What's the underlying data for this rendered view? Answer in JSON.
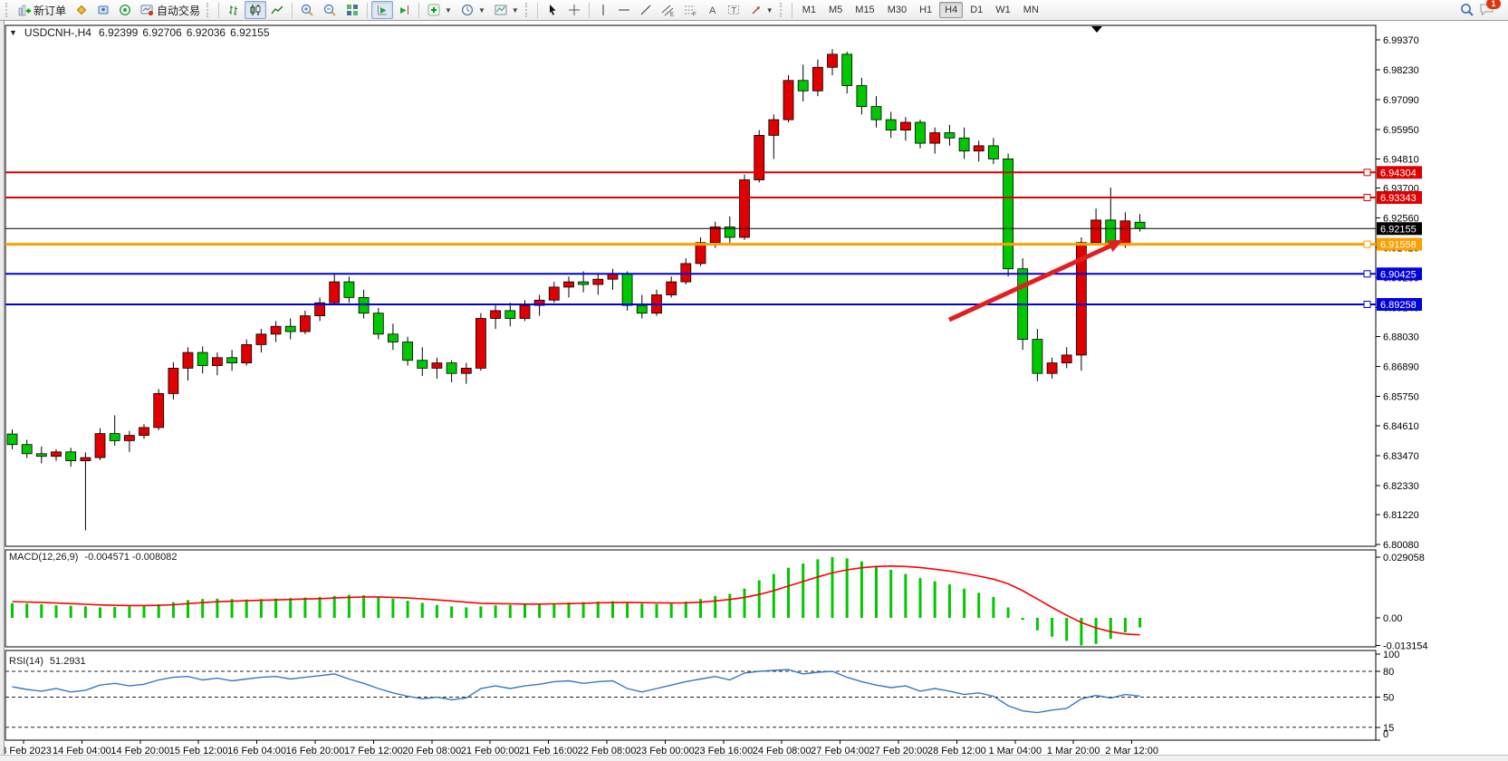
{
  "toolbar": {
    "new_order": "新订单",
    "autotrading": "自动交易",
    "timeframes": [
      "M1",
      "M5",
      "M15",
      "M30",
      "H1",
      "H4",
      "D1",
      "W1",
      "MN"
    ],
    "active_timeframe": "H4",
    "notification_count": "1"
  },
  "chart": {
    "title": "USDCNH-,H4",
    "open": "6.92399",
    "high": "6.92706",
    "low": "6.92036",
    "close": "6.92155"
  },
  "macd": {
    "label": "MACD(12,26,9)",
    "value_main": "-0.004571",
    "value_signal": "-0.008082",
    "axis": [
      "0.029058",
      "0.00",
      "-0.013154"
    ]
  },
  "rsi": {
    "label": "RSI(14)",
    "value": "51.2931",
    "axis": [
      "100",
      "80",
      "50",
      "15",
      "0"
    ],
    "levels": [
      80,
      50,
      15
    ]
  },
  "colors": {
    "bull": "#e00000",
    "bear": "#00c800",
    "wick": "#000000",
    "line_red": "#e00000",
    "line_blue": "#0000e0",
    "line_orange": "#ffa000",
    "line_black": "#000000",
    "macd_hist": "#00c800",
    "macd_signal": "#ff0000",
    "rsi_line": "#3878c8",
    "arrow": "#e02020"
  },
  "chart_data": {
    "type": "candlestick",
    "symbol": "USDCNH-",
    "period": "H4",
    "price_axis_ticks": [
      "6.99370",
      "6.98230",
      "6.97090",
      "6.95950",
      "6.94810",
      "6.93700",
      "6.92560",
      "6.91420",
      "6.90280",
      "6.89140",
      "6.88030",
      "6.86890",
      "6.85750",
      "6.84610",
      "6.83470",
      "6.82330",
      "6.81220",
      "6.80080"
    ],
    "time_axis_labels": [
      "13 Feb 2023",
      "14 Feb 04:00",
      "14 Feb 20:00",
      "15 Feb 12:00",
      "16 Feb 04:00",
      "16 Feb 20:00",
      "17 Feb 12:00",
      "20 Feb 08:00",
      "21 Feb 00:00",
      "21 Feb 16:00",
      "22 Feb 08:00",
      "23 Feb 00:00",
      "23 Feb 16:00",
      "24 Feb 08:00",
      "27 Feb 04:00",
      "27 Feb 20:00",
      "28 Feb 12:00",
      "1 Mar 04:00",
      "1 Mar 20:00",
      "2 Mar 12:00"
    ],
    "horizontal_lines": [
      {
        "label": "6.94304",
        "value": 6.94304,
        "color": "#e00000",
        "weight": 2,
        "handle": true
      },
      {
        "label": "6.93343",
        "value": 6.93343,
        "color": "#e00000",
        "weight": 2,
        "handle": true
      },
      {
        "label": "6.92155",
        "value": 6.92155,
        "color": "#000000",
        "weight": 1,
        "handle": false
      },
      {
        "label": "6.91558",
        "value": 6.91558,
        "color": "#ffa000",
        "weight": 3,
        "handle": true
      },
      {
        "label": "6.90425",
        "value": 6.90425,
        "color": "#0000e0",
        "weight": 2,
        "handle": true
      },
      {
        "label": "6.89258",
        "value": 6.89258,
        "color": "#0000e0",
        "weight": 2,
        "handle": true
      }
    ],
    "candles": [
      [
        6.843,
        6.8448,
        6.8372,
        6.839
      ],
      [
        6.839,
        6.8408,
        6.8338,
        6.8355
      ],
      [
        6.8355,
        6.8382,
        6.8318,
        6.8345
      ],
      [
        6.8345,
        6.8372,
        6.8328,
        6.8362
      ],
      [
        6.8362,
        6.8378,
        6.8305,
        6.8328
      ],
      [
        6.8328,
        6.836,
        6.8062,
        6.834
      ],
      [
        6.834,
        6.8452,
        6.833,
        6.8432
      ],
      [
        6.8432,
        6.8502,
        6.8385,
        6.8405
      ],
      [
        6.8405,
        6.8442,
        6.8362,
        6.8425
      ],
      [
        6.8425,
        6.8468,
        6.8412,
        6.8455
      ],
      [
        6.8455,
        6.8602,
        6.8445,
        6.8585
      ],
      [
        6.8585,
        6.8705,
        6.8562,
        6.8682
      ],
      [
        6.8682,
        6.8762,
        6.8635,
        6.8742
      ],
      [
        6.8742,
        6.8765,
        6.8662,
        6.8692
      ],
      [
        6.8692,
        6.8742,
        6.8655,
        6.8722
      ],
      [
        6.8722,
        6.8752,
        6.8672,
        6.8702
      ],
      [
        6.8702,
        6.8792,
        6.8692,
        6.8772
      ],
      [
        6.8772,
        6.8832,
        6.8742,
        6.8812
      ],
      [
        6.8812,
        6.8862,
        6.8782,
        6.8842
      ],
      [
        6.8842,
        6.8872,
        6.8792,
        6.8822
      ],
      [
        6.8822,
        6.8902,
        6.8812,
        6.8882
      ],
      [
        6.8882,
        6.8952,
        6.8862,
        6.8932
      ],
      [
        6.8932,
        6.9042,
        6.8922,
        6.9012
      ],
      [
        6.9012,
        6.9032,
        6.8932,
        6.8952
      ],
      [
        6.8952,
        6.8982,
        6.8872,
        6.8892
      ],
      [
        6.8892,
        6.8912,
        6.8792,
        6.8812
      ],
      [
        6.8812,
        6.8852,
        6.8752,
        6.8782
      ],
      [
        6.8782,
        6.8802,
        6.8692,
        6.8712
      ],
      [
        6.8712,
        6.8762,
        6.8652,
        6.8682
      ],
      [
        6.8682,
        6.8722,
        6.8642,
        6.8702
      ],
      [
        6.8702,
        6.8712,
        6.8628,
        6.8662
      ],
      [
        6.8662,
        6.8702,
        6.8622,
        6.8682
      ],
      [
        6.8682,
        6.8892,
        6.8672,
        6.8872
      ],
      [
        6.8872,
        6.8922,
        6.8832,
        6.8902
      ],
      [
        6.8902,
        6.8932,
        6.8842,
        6.8872
      ],
      [
        6.8872,
        6.8942,
        6.8862,
        6.8922
      ],
      [
        6.8922,
        6.8962,
        6.8882,
        6.8942
      ],
      [
        6.8942,
        6.9012,
        6.8932,
        6.8992
      ],
      [
        6.8992,
        6.9032,
        6.8952,
        6.9012
      ],
      [
        6.9012,
        6.9052,
        6.8972,
        6.9002
      ],
      [
        6.9002,
        6.9042,
        6.8962,
        6.9022
      ],
      [
        6.9022,
        6.9062,
        6.8982,
        6.9042
      ],
      [
        6.9042,
        6.9052,
        6.8902,
        6.8922
      ],
      [
        6.8922,
        6.8962,
        6.8872,
        6.8892
      ],
      [
        6.8892,
        6.8982,
        6.8882,
        6.8962
      ],
      [
        6.8962,
        6.9032,
        6.8952,
        6.9012
      ],
      [
        6.9012,
        6.9102,
        6.9002,
        6.9082
      ],
      [
        6.9082,
        6.9182,
        6.9072,
        6.9162
      ],
      [
        6.9162,
        6.9242,
        6.9142,
        6.9222
      ],
      [
        6.9222,
        6.9262,
        6.9152,
        6.9182
      ],
      [
        6.9182,
        6.9422,
        6.9172,
        6.9402
      ],
      [
        6.9402,
        6.9592,
        6.9392,
        6.9572
      ],
      [
        6.9572,
        6.9652,
        6.9482,
        6.9632
      ],
      [
        6.9632,
        6.9802,
        6.9622,
        6.9782
      ],
      [
        6.9782,
        6.9842,
        6.9702,
        6.9742
      ],
      [
        6.9742,
        6.9862,
        6.9722,
        6.9832
      ],
      [
        6.9832,
        6.9902,
        6.9802,
        6.9882
      ],
      [
        6.9882,
        6.9892,
        6.9732,
        6.9762
      ],
      [
        6.9762,
        6.9792,
        6.9652,
        6.9682
      ],
      [
        6.9682,
        6.9722,
        6.9602,
        6.9632
      ],
      [
        6.9632,
        6.9662,
        6.9562,
        6.9592
      ],
      [
        6.9592,
        6.9642,
        6.9552,
        6.9622
      ],
      [
        6.9622,
        6.9632,
        6.9522,
        6.9542
      ],
      [
        6.9542,
        6.9602,
        6.9502,
        6.9582
      ],
      [
        6.9582,
        6.9612,
        6.9532,
        6.9562
      ],
      [
        6.9562,
        6.9602,
        6.9482,
        6.9512
      ],
      [
        6.9512,
        6.9552,
        6.9472,
        6.9532
      ],
      [
        6.9532,
        6.9562,
        6.9462,
        6.9482
      ],
      [
        6.9482,
        6.9502,
        6.9032,
        6.9062
      ],
      [
        6.9062,
        6.9102,
        6.8752,
        6.8792
      ],
      [
        6.8792,
        6.8832,
        6.8632,
        6.8662
      ],
      [
        6.8662,
        6.8722,
        6.8642,
        6.8702
      ],
      [
        6.8702,
        6.8762,
        6.8682,
        6.8732
      ],
      [
        6.8732,
        6.9182,
        6.8672,
        6.9162
      ],
      [
        6.9162,
        6.9292,
        6.9152,
        6.9248
      ],
      [
        6.9248,
        6.9372,
        6.9148,
        6.9152
      ],
      [
        6.9152,
        6.9278,
        6.9142,
        6.9245
      ],
      [
        6.924,
        6.9271,
        6.9204,
        6.9216
      ]
    ],
    "macd_histogram": [
      0.007,
      0.0068,
      0.0065,
      0.006,
      0.0058,
      0.0055,
      0.005,
      0.0052,
      0.0055,
      0.0058,
      0.0065,
      0.0075,
      0.0085,
      0.009,
      0.0092,
      0.009,
      0.0088,
      0.009,
      0.0093,
      0.0095,
      0.0097,
      0.01,
      0.0105,
      0.011,
      0.0108,
      0.01,
      0.0092,
      0.0082,
      0.0072,
      0.0062,
      0.0055,
      0.005,
      0.0055,
      0.006,
      0.0062,
      0.0064,
      0.0066,
      0.007,
      0.0074,
      0.0076,
      0.0078,
      0.008,
      0.0075,
      0.0068,
      0.0066,
      0.007,
      0.0078,
      0.009,
      0.0105,
      0.0115,
      0.014,
      0.018,
      0.021,
      0.024,
      0.026,
      0.028,
      0.0291,
      0.0285,
      0.027,
      0.025,
      0.023,
      0.021,
      0.019,
      0.0175,
      0.016,
      0.014,
      0.012,
      0.01,
      0.005,
      -0.001,
      -0.006,
      -0.009,
      -0.011,
      -0.0132,
      -0.0125,
      -0.01,
      -0.007,
      -0.0046
    ],
    "macd_signal": [
      0.0078,
      0.0076,
      0.0074,
      0.0071,
      0.0068,
      0.0065,
      0.0062,
      0.006,
      0.0059,
      0.0059,
      0.006,
      0.0063,
      0.0068,
      0.0073,
      0.0077,
      0.008,
      0.0082,
      0.0084,
      0.0086,
      0.0088,
      0.009,
      0.0092,
      0.0095,
      0.0098,
      0.01,
      0.01,
      0.0098,
      0.0095,
      0.0091,
      0.0086,
      0.0081,
      0.0075,
      0.007,
      0.0068,
      0.0067,
      0.0066,
      0.0066,
      0.0067,
      0.0068,
      0.007,
      0.0072,
      0.0073,
      0.0074,
      0.0073,
      0.0072,
      0.0071,
      0.0072,
      0.0075,
      0.0081,
      0.0088,
      0.0098,
      0.0112,
      0.013,
      0.0152,
      0.0174,
      0.0196,
      0.0215,
      0.023,
      0.024,
      0.0246,
      0.0248,
      0.0246,
      0.0241,
      0.0233,
      0.0224,
      0.0213,
      0.02,
      0.0185,
      0.0163,
      0.013,
      0.009,
      0.005,
      0.0012,
      -0.0022,
      -0.0048,
      -0.0066,
      -0.0077,
      -0.0081
    ],
    "rsi_values": [
      62,
      59,
      57,
      60,
      56,
      58,
      64,
      66,
      63,
      65,
      70,
      73,
      74,
      70,
      72,
      69,
      71,
      73,
      74,
      71,
      73,
      75,
      77,
      71,
      66,
      60,
      55,
      51,
      48,
      50,
      47,
      49,
      60,
      63,
      60,
      63,
      65,
      68,
      69,
      66,
      68,
      69,
      60,
      56,
      60,
      64,
      68,
      71,
      74,
      70,
      78,
      80,
      81,
      82,
      77,
      79,
      80,
      73,
      68,
      64,
      61,
      63,
      57,
      60,
      57,
      53,
      55,
      51,
      40,
      34,
      32,
      35,
      37,
      48,
      52,
      49,
      53,
      51.3
    ]
  }
}
